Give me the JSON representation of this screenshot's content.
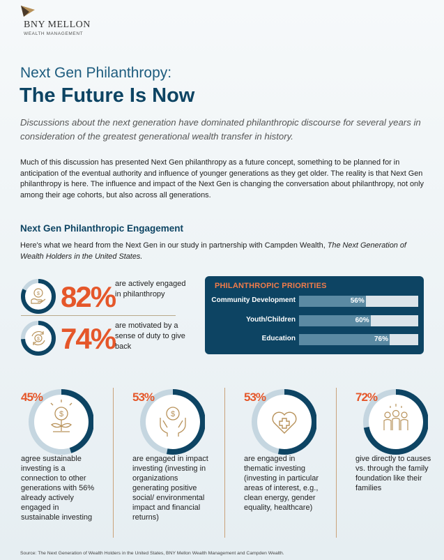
{
  "brand": {
    "name": "BNY MELLON",
    "sub": "WEALTH MANAGEMENT"
  },
  "header": {
    "subtitle": "Next Gen Philanthropy:",
    "title": "The Future Is Now"
  },
  "intro": {
    "italic": "Discussions about the next generation have dominated philanthropic discourse for several years in consideration of the greatest generational wealth transfer in history.",
    "body": "Much of this discussion has presented Next Gen philanthropy as a future concept, something to be planned for in anticipation of the eventual authority and influence of younger generations as they get older. The reality is that Next Gen philanthropy is here. The influence and impact of the Next Gen is changing the conversation about philanthropy, not only among their age cohorts, but also across all generations."
  },
  "section": {
    "title": "Next Gen Philanthropic Engagement",
    "desc_prefix": "Here's what we heard from the Next Gen in our study in partnership with Campden Wealth, ",
    "desc_italic": "The Next Generation of Wealth Holders in the United States."
  },
  "stats": [
    {
      "pct": "82%",
      "value": 82,
      "text": "are actively engaged in philanthropy",
      "icon": "hand-coin-icon"
    },
    {
      "pct": "74%",
      "value": 74,
      "text": "are motivated by a sense of duty to give back",
      "icon": "coin-cycle-icon"
    }
  ],
  "priorities": {
    "title": "PHILANTHROPIC PRIORITIES",
    "items": [
      {
        "label": "Community Development",
        "pct": "56%",
        "value": 56
      },
      {
        "label": "Youth/Children",
        "pct": "60%",
        "value": 60
      },
      {
        "label": "Education",
        "pct": "76%",
        "value": 76
      }
    ]
  },
  "columns": [
    {
      "pct": "45%",
      "value": 45,
      "icon": "sprout-coin-icon",
      "text": "agree sustainable investing is a connection to other generations with 56% already actively engaged in sustainable investing"
    },
    {
      "pct": "53%",
      "value": 53,
      "icon": "hands-coin-icon",
      "text": "are engaged in impact investing (investing in organizations generating positive social/ environmental impact and financial returns)"
    },
    {
      "pct": "53%",
      "value": 53,
      "icon": "heart-cross-icon",
      "text": "are engaged in thematic investing (investing in particular areas of interest, e.g., clean energy, gender equality, healthcare)"
    },
    {
      "pct": "72%",
      "value": 72,
      "icon": "family-icon",
      "text": "give directly to causes vs. through the family foundation like their families"
    }
  ],
  "source": "Source: The Next Generation of Wealth Holders in the United States, BNY Mellon Wealth Management and Campden Wealth.",
  "colors": {
    "navy": "#0d4463",
    "orange": "#e5572a",
    "ring_light": "#c5d6e0",
    "gold": "#b8925a"
  }
}
